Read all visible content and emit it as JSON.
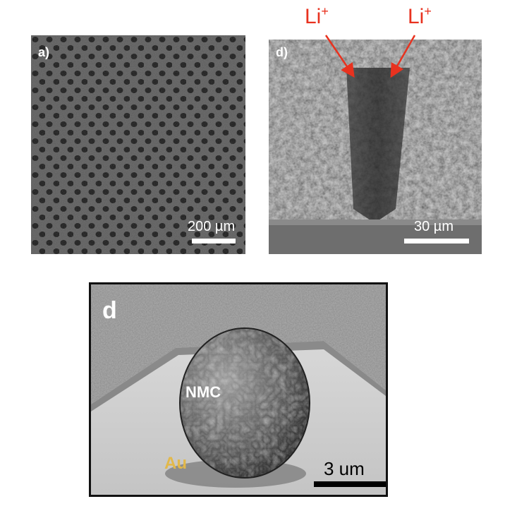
{
  "figure": {
    "panel_a": {
      "label": "a)",
      "scale_text": "200 µm"
    },
    "panel_d_top": {
      "label": "d)",
      "scale_text": "30 µm",
      "ion_labels": [
        "Li",
        "Li"
      ],
      "ion_charge": "+",
      "ion_color": "#e8321f"
    },
    "panel_d_bottom": {
      "label": "d",
      "particle_label": "NMC",
      "substrate_label": "Au",
      "substrate_color": "#e2b84a",
      "scale_text": "3 um"
    }
  }
}
